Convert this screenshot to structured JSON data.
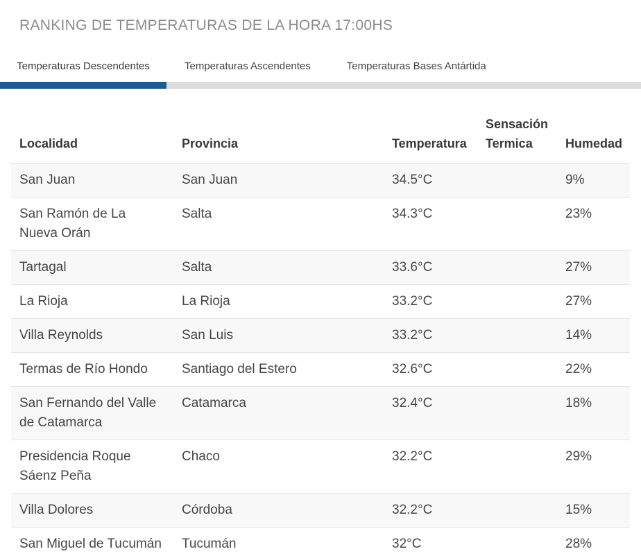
{
  "header": {
    "title": "RANKING DE TEMPERATURAS DE LA HORA 17:00HS"
  },
  "tabs": [
    {
      "label": "Temperaturas Descendentes",
      "active": true
    },
    {
      "label": "Temperaturas Ascendentes",
      "active": false
    },
    {
      "label": "Temperaturas Bases Antártida",
      "active": false
    }
  ],
  "table": {
    "headers": {
      "localidad": "Localidad",
      "provincia": "Provincia",
      "temperatura": "Temperatura",
      "sensacion": "Sensación Termica",
      "humedad": "Humedad"
    },
    "rows": [
      {
        "localidad": "San Juan",
        "provincia": "San Juan",
        "temperatura": "34.5°C",
        "sensacion": "",
        "humedad": "9%"
      },
      {
        "localidad": "San Ramón de La\nNueva Orán",
        "provincia": "Salta",
        "temperatura": "34.3°C",
        "sensacion": "",
        "humedad": "23%"
      },
      {
        "localidad": "Tartagal",
        "provincia": "Salta",
        "temperatura": "33.6°C",
        "sensacion": "",
        "humedad": "27%"
      },
      {
        "localidad": "La Rioja",
        "provincia": "La Rioja",
        "temperatura": "33.2°C",
        "sensacion": "",
        "humedad": "27%"
      },
      {
        "localidad": "Villa Reynolds",
        "provincia": "San Luis",
        "temperatura": "33.2°C",
        "sensacion": "",
        "humedad": "14%"
      },
      {
        "localidad": "Termas de Río Hondo",
        "provincia": "Santiago del Estero",
        "temperatura": "32.6°C",
        "sensacion": "",
        "humedad": "22%"
      },
      {
        "localidad": "San Fernando del Valle\nde Catamarca",
        "provincia": "Catamarca",
        "temperatura": "32.4°C",
        "sensacion": "",
        "humedad": "18%"
      },
      {
        "localidad": "Presidencia Roque\nSáenz Peña",
        "provincia": "Chaco",
        "temperatura": "32.2°C",
        "sensacion": "",
        "humedad": "29%"
      },
      {
        "localidad": "Villa Dolores",
        "provincia": "Córdoba",
        "temperatura": "32.2°C",
        "sensacion": "",
        "humedad": "15%"
      },
      {
        "localidad": "San Miguel de Tucumán",
        "provincia": "Tucumán",
        "temperatura": "32°C",
        "sensacion": "",
        "humedad": "28%"
      }
    ]
  },
  "colors": {
    "accent_blue": "#1d5a97",
    "tab_track_gray": "#dcdcdc",
    "row_alt_bg": "#f8f8f8",
    "row_border": "#e4e4e4",
    "title_gray": "#8b8b8b"
  }
}
